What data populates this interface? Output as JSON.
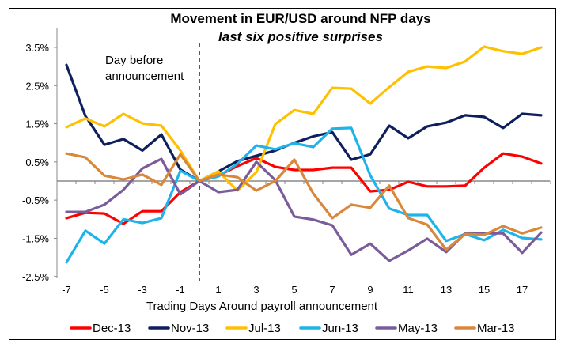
{
  "chart_data": {
    "type": "line",
    "title": "Movement in EUR/USD around NFP days",
    "subtitle": "last six positive surprises",
    "xlabel": "Trading Days Around payroll announcement",
    "ylabel": "",
    "x": [
      -7,
      -6,
      -5,
      -4,
      -3,
      -2,
      -1,
      0,
      1,
      2,
      3,
      4,
      5,
      6,
      7,
      8,
      9,
      10,
      11,
      12,
      13,
      14,
      15,
      16,
      17,
      18
    ],
    "xticks": [
      -7,
      -5,
      -3,
      -1,
      1,
      3,
      5,
      7,
      9,
      11,
      13,
      15,
      17
    ],
    "xtick_labels": [
      "-7",
      "-5",
      "-3",
      "-1",
      "1",
      "3",
      "5",
      "7",
      "9",
      "11",
      "13",
      "15",
      "17"
    ],
    "xlim": [
      -7.5,
      18.5
    ],
    "yticks": [
      3.5,
      2.5,
      1.5,
      0.5,
      -0.5,
      -1.5,
      -2.5
    ],
    "ytick_labels": [
      "3.5%",
      "2.5%",
      "1.5%",
      "0.5%",
      "-0.5%",
      "-1.5%",
      "-2.5%"
    ],
    "ylim": [
      -2.5,
      4.0
    ],
    "grid": false,
    "legend_position": "bottom",
    "annotation": {
      "text_line1": "Day before",
      "text_line2": "announcement",
      "vline_x": -0.5
    },
    "series": [
      {
        "name": "Dec-13",
        "color": "#ff0000",
        "values": [
          -0.97,
          -0.83,
          -0.85,
          -1.12,
          -0.79,
          -0.79,
          -0.29,
          0,
          0.14,
          0.39,
          0.6,
          0.37,
          0.29,
          0.29,
          0.35,
          0.35,
          -0.27,
          -0.23,
          -0.02,
          -0.14,
          -0.14,
          -0.12,
          0.35,
          0.72,
          0.64,
          0.46
        ]
      },
      {
        "name": "Nov-13",
        "color": "#0d1f5c",
        "values": [
          3.04,
          1.7,
          0.95,
          1.1,
          0.8,
          1.22,
          0.3,
          0,
          0.25,
          0.52,
          0.66,
          0.8,
          1.0,
          1.17,
          1.28,
          0.56,
          0.7,
          1.45,
          1.12,
          1.43,
          1.53,
          1.72,
          1.68,
          1.39,
          1.76,
          1.72
        ]
      },
      {
        "name": "Jul-13",
        "color": "#ffc000",
        "values": [
          1.41,
          1.64,
          1.43,
          1.76,
          1.51,
          1.45,
          0.8,
          0,
          0.25,
          -0.25,
          0.23,
          1.49,
          1.86,
          1.76,
          2.44,
          2.42,
          2.03,
          2.46,
          2.86,
          3.0,
          2.96,
          3.13,
          3.52,
          3.4,
          3.33,
          3.5
        ]
      },
      {
        "name": "Jun-13",
        "color": "#1eb4ea",
        "values": [
          -2.13,
          -1.3,
          -1.64,
          -1.0,
          -1.1,
          -0.97,
          0.27,
          0,
          0.12,
          0.45,
          0.93,
          0.83,
          0.99,
          0.89,
          1.37,
          1.39,
          0.15,
          -0.72,
          -0.89,
          -0.89,
          -1.57,
          -1.39,
          -1.55,
          -1.28,
          -1.49,
          -1.53
        ]
      },
      {
        "name": "May-13",
        "color": "#7b5c9a",
        "values": [
          -0.81,
          -0.81,
          -0.62,
          -0.23,
          0.33,
          0.58,
          -0.35,
          0,
          -0.29,
          -0.23,
          0.5,
          0.02,
          -0.93,
          -1.01,
          -1.16,
          -1.93,
          -1.64,
          -2.09,
          -1.82,
          -1.51,
          -1.86,
          -1.37,
          -1.37,
          -1.37,
          -1.88,
          -1.35
        ]
      },
      {
        "name": "Mar-13",
        "color": "#d9873a",
        "values": [
          0.72,
          0.62,
          0.14,
          0.04,
          0.17,
          -0.1,
          0.7,
          0,
          0.17,
          0.1,
          -0.25,
          0,
          0.56,
          -0.33,
          -0.97,
          -0.62,
          -0.7,
          -0.12,
          -0.97,
          -1.14,
          -1.8,
          -1.39,
          -1.41,
          -1.18,
          -1.37,
          -1.22
        ]
      }
    ]
  }
}
